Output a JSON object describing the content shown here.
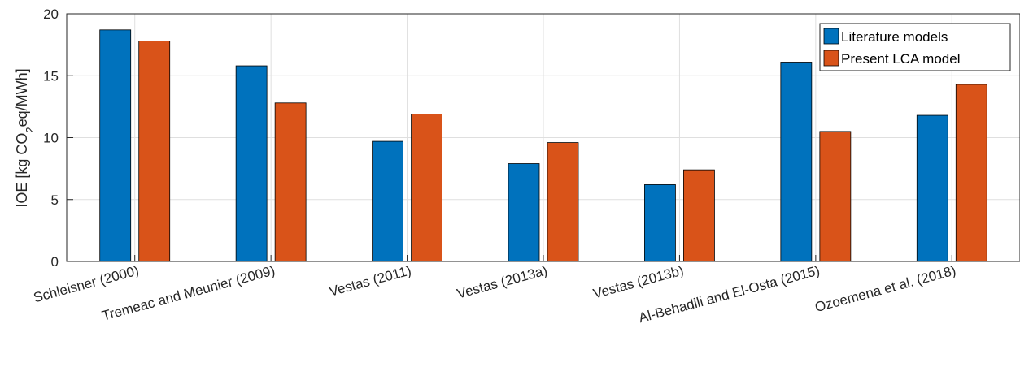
{
  "chart_data": {
    "type": "bar",
    "categories": [
      "Schleisner (2000)",
      "Tremeac and Meunier (2009)",
      "Vestas (2011)",
      "Vestas (2013a)",
      "Vestas (2013b)",
      "Al-Behadili and El-Osta (2015)",
      "Ozoemena et al. (2018)"
    ],
    "series": [
      {
        "name": "Literature models",
        "color": "#0072BD",
        "values": [
          18.7,
          15.8,
          9.7,
          7.9,
          6.2,
          16.1,
          11.8
        ]
      },
      {
        "name": "Present LCA model",
        "color": "#D95319",
        "values": [
          17.8,
          12.8,
          11.9,
          9.6,
          7.4,
          10.5,
          14.3
        ]
      }
    ],
    "ylabel": {
      "prefix": "IOE [kg CO",
      "subscript": "2",
      "suffix": "eq/MWh]"
    },
    "ylim": [
      0,
      20
    ],
    "yticks": [
      "0",
      "5",
      "10",
      "15",
      "20"
    ],
    "grid": true,
    "legend_position": "top-right"
  }
}
